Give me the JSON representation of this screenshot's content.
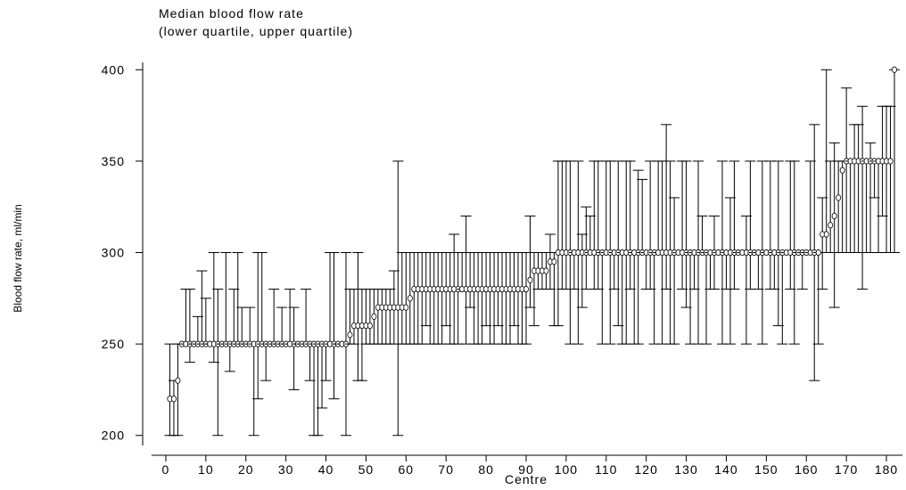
{
  "chart_data": {
    "type": "errorbar",
    "title": "Median blood flow rate",
    "subtitle": "(lower quartile, upper quartile)",
    "x_label": "Centre",
    "y_label": "Blood flow rate, ml/min",
    "color": "#000000",
    "x": [
      1,
      2,
      3,
      4,
      5,
      6,
      7,
      8,
      9,
      10,
      11,
      12,
      13,
      14,
      15,
      16,
      17,
      18,
      19,
      20,
      21,
      22,
      23,
      24,
      25,
      26,
      27,
      28,
      29,
      30,
      31,
      32,
      33,
      34,
      35,
      36,
      37,
      38,
      39,
      40,
      41,
      42,
      43,
      44,
      45,
      46,
      47,
      48,
      49,
      50,
      51,
      52,
      53,
      54,
      55,
      56,
      57,
      58,
      59,
      60,
      61,
      62,
      63,
      64,
      65,
      66,
      67,
      68,
      69,
      70,
      71,
      72,
      73,
      74,
      75,
      76,
      77,
      78,
      79,
      80,
      81,
      82,
      83,
      84,
      85,
      86,
      87,
      88,
      89,
      90,
      91,
      92,
      93,
      94,
      95,
      96,
      97,
      98,
      99,
      100,
      101,
      102,
      103,
      104,
      105,
      106,
      107,
      108,
      109,
      110,
      111,
      112,
      113,
      114,
      115,
      116,
      117,
      118,
      119,
      120,
      121,
      122,
      123,
      124,
      125,
      126,
      127,
      128,
      129,
      130,
      131,
      132,
      133,
      134,
      135,
      136,
      137,
      138,
      139,
      140,
      141,
      142,
      143,
      144,
      145,
      146,
      147,
      148,
      149,
      150,
      151,
      152,
      153,
      154,
      155,
      156,
      157,
      158,
      159,
      160,
      161,
      162,
      163,
      164,
      165,
      166,
      167,
      168,
      169,
      170,
      171,
      172,
      173,
      174,
      175,
      176,
      177,
      178,
      179,
      180,
      181,
      182
    ],
    "median": [
      220,
      220,
      230,
      250,
      250,
      250,
      250,
      250,
      250,
      250,
      250,
      250,
      250,
      250,
      250,
      250,
      250,
      250,
      250,
      250,
      250,
      250,
      250,
      250,
      250,
      250,
      250,
      250,
      250,
      250,
      250,
      250,
      250,
      250,
      250,
      250,
      250,
      250,
      250,
      250,
      250,
      250,
      250,
      250,
      250,
      255,
      260,
      260,
      260,
      260,
      260,
      265,
      270,
      270,
      270,
      270,
      270,
      270,
      270,
      270,
      275,
      280,
      280,
      280,
      280,
      280,
      280,
      280,
      280,
      280,
      280,
      280,
      280,
      280,
      280,
      280,
      280,
      280,
      280,
      280,
      280,
      280,
      280,
      280,
      280,
      280,
      280,
      280,
      280,
      280,
      285,
      290,
      290,
      290,
      290,
      295,
      295,
      300,
      300,
      300,
      300,
      300,
      300,
      300,
      300,
      300,
      300,
      300,
      300,
      300,
      300,
      300,
      300,
      300,
      300,
      300,
      300,
      300,
      300,
      300,
      300,
      300,
      300,
      300,
      300,
      300,
      300,
      300,
      300,
      300,
      300,
      300,
      300,
      300,
      300,
      300,
      300,
      300,
      300,
      300,
      300,
      300,
      300,
      300,
      300,
      300,
      300,
      300,
      300,
      300,
      300,
      300,
      300,
      300,
      300,
      300,
      300,
      300,
      300,
      300,
      300,
      300,
      300,
      310,
      310,
      315,
      320,
      330,
      345,
      350,
      350,
      350,
      350,
      350,
      350,
      350,
      350,
      350,
      350,
      350,
      350,
      400
    ],
    "lower": [
      200,
      200,
      200,
      250,
      250,
      240,
      250,
      250,
      250,
      250,
      250,
      240,
      200,
      250,
      250,
      235,
      250,
      250,
      250,
      250,
      250,
      200,
      220,
      250,
      230,
      250,
      250,
      250,
      250,
      250,
      250,
      225,
      250,
      250,
      250,
      230,
      200,
      200,
      215,
      230,
      250,
      220,
      250,
      250,
      200,
      250,
      250,
      230,
      230,
      250,
      250,
      250,
      250,
      250,
      250,
      250,
      250,
      200,
      250,
      250,
      250,
      250,
      250,
      250,
      260,
      250,
      250,
      250,
      250,
      260,
      250,
      250,
      250,
      280,
      250,
      270,
      250,
      250,
      250,
      260,
      250,
      250,
      260,
      250,
      250,
      250,
      260,
      250,
      250,
      250,
      270,
      260,
      280,
      280,
      280,
      280,
      260,
      260,
      280,
      280,
      250,
      280,
      250,
      270,
      280,
      300,
      280,
      280,
      250,
      300,
      250,
      280,
      260,
      250,
      250,
      280,
      250,
      250,
      300,
      280,
      280,
      250,
      300,
      250,
      280,
      250,
      250,
      300,
      280,
      270,
      250,
      280,
      250,
      300,
      250,
      280,
      280,
      300,
      250,
      280,
      250,
      280,
      300,
      300,
      250,
      280,
      300,
      280,
      250,
      300,
      280,
      280,
      260,
      250,
      300,
      280,
      250,
      300,
      280,
      300,
      300,
      230,
      250,
      280,
      300,
      300,
      270,
      300,
      300,
      300,
      300,
      300,
      300,
      280,
      300,
      300,
      330,
      300,
      320,
      300,
      300,
      300
    ],
    "upper": [
      250,
      230,
      250,
      250,
      280,
      280,
      250,
      265,
      290,
      275,
      250,
      300,
      280,
      250,
      300,
      250,
      280,
      300,
      270,
      250,
      270,
      250,
      300,
      300,
      250,
      250,
      280,
      250,
      270,
      250,
      280,
      270,
      250,
      250,
      280,
      250,
      250,
      250,
      250,
      250,
      300,
      300,
      250,
      250,
      300,
      280,
      280,
      300,
      280,
      280,
      280,
      280,
      280,
      280,
      280,
      280,
      290,
      350,
      300,
      300,
      300,
      300,
      300,
      300,
      300,
      300,
      300,
      300,
      300,
      300,
      300,
      310,
      300,
      300,
      320,
      300,
      300,
      300,
      300,
      300,
      300,
      300,
      300,
      300,
      300,
      300,
      300,
      300,
      300,
      300,
      320,
      300,
      300,
      300,
      300,
      310,
      300,
      350,
      350,
      350,
      350,
      300,
      350,
      310,
      325,
      320,
      350,
      350,
      300,
      350,
      350,
      300,
      350,
      300,
      350,
      350,
      300,
      345,
      340,
      300,
      350,
      300,
      350,
      350,
      370,
      350,
      330,
      300,
      350,
      350,
      300,
      300,
      350,
      320,
      300,
      300,
      320,
      300,
      350,
      300,
      330,
      350,
      300,
      300,
      320,
      350,
      300,
      300,
      350,
      300,
      350,
      300,
      350,
      300,
      300,
      350,
      350,
      300,
      300,
      300,
      350,
      370,
      300,
      330,
      400,
      350,
      360,
      350,
      350,
      390,
      350,
      370,
      370,
      380,
      350,
      360,
      350,
      350,
      380,
      380,
      380,
      400
    ],
    "xlim": [
      -4,
      184
    ],
    "ylim": [
      195,
      405
    ],
    "xticks": [
      0,
      10,
      20,
      30,
      40,
      50,
      60,
      70,
      80,
      90,
      100,
      110,
      120,
      130,
      140,
      150,
      160,
      170,
      180
    ],
    "yticks": [
      200,
      250,
      300,
      350,
      400
    ]
  }
}
